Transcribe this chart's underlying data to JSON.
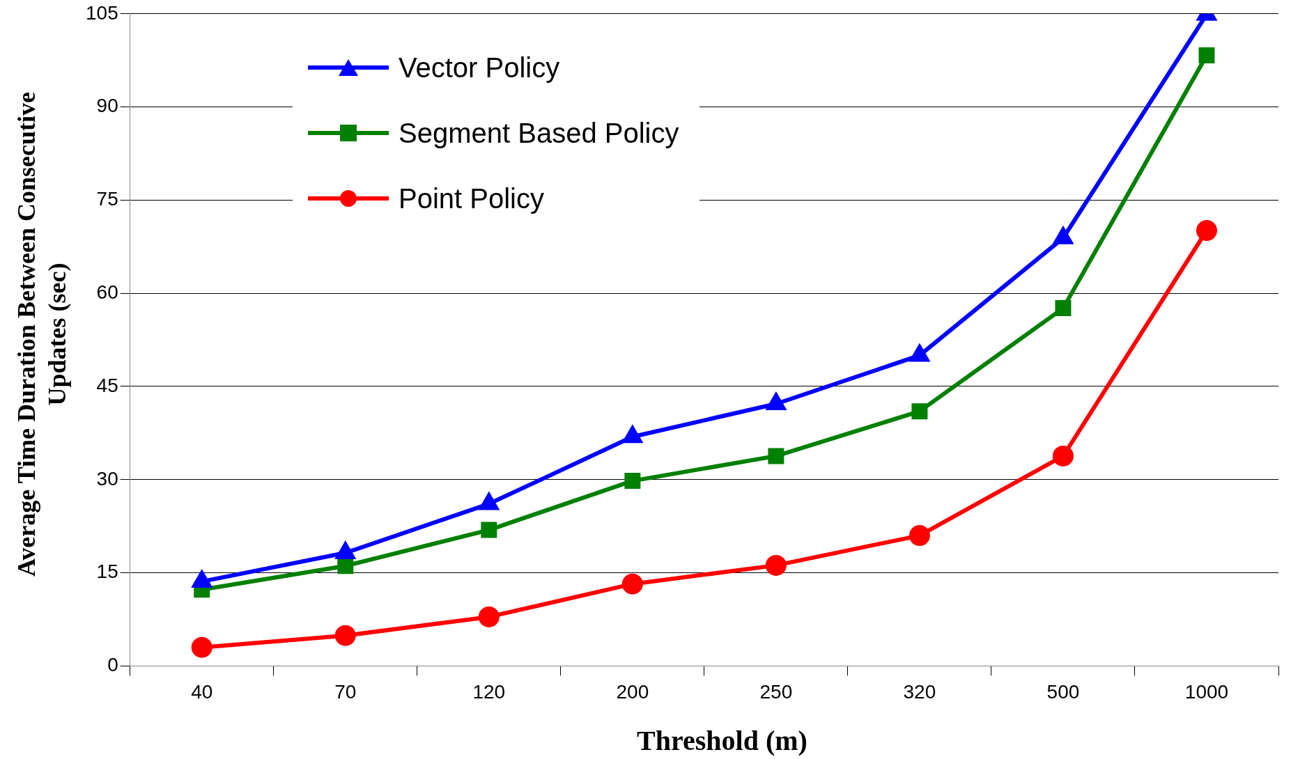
{
  "chart_data": {
    "type": "line",
    "xlabel": "Threshold (m)",
    "ylabel": "Average Time Duration Between Consecutive Updates (sec)",
    "categories": [
      "40",
      "70",
      "120",
      "200",
      "250",
      "320",
      "500",
      "1000"
    ],
    "series": [
      {
        "name": "Vector Policy",
        "color": "#0000ff",
        "marker": "triangle",
        "values": [
          13.6,
          18.2,
          26.1,
          36.9,
          42.2,
          50.0,
          68.9,
          104.9
        ]
      },
      {
        "name": "Segment Based Policy",
        "color": "#008000",
        "marker": "square",
        "values": [
          12.3,
          16.1,
          21.9,
          29.8,
          33.8,
          41.0,
          57.6,
          98.3
        ]
      },
      {
        "name": "Point Policy",
        "color": "#ff0000",
        "marker": "circle",
        "values": [
          3.0,
          4.9,
          7.9,
          13.2,
          16.2,
          21.0,
          33.8,
          70.1
        ]
      }
    ],
    "ylim": [
      0,
      105
    ],
    "yticks": [
      0,
      15,
      30,
      45,
      60,
      75,
      90,
      105
    ],
    "grid": "y",
    "legend": "top left"
  }
}
